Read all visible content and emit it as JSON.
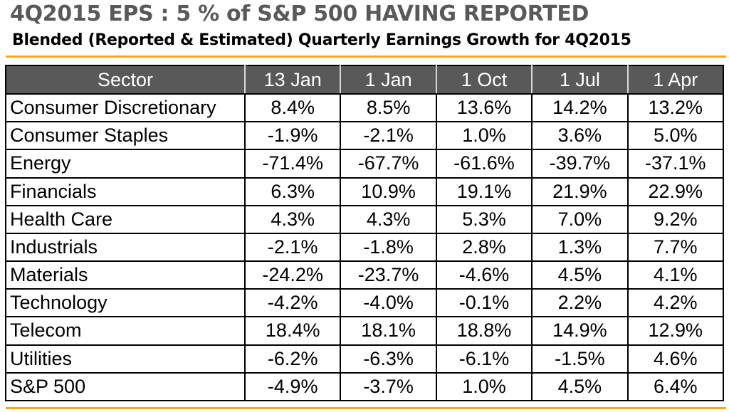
{
  "title": "4Q2015 EPS : 5 % of S&P 500 HAVING REPORTED",
  "subtitle": "Blended (Reported & Estimated) Quarterly Earnings Growth for 4Q2015",
  "colors": {
    "header_bg": "#595959",
    "accent_rule": "#f5a623"
  },
  "table": {
    "headers": [
      "Sector",
      "13 Jan",
      "1 Jan",
      "1 Oct",
      "1 Jul",
      "1 Apr"
    ],
    "rows": [
      [
        "Consumer Discretionary",
        "8.4%",
        "8.5%",
        "13.6%",
        "14.2%",
        "13.2%"
      ],
      [
        "Consumer Staples",
        "-1.9%",
        "-2.1%",
        "1.0%",
        "3.6%",
        "5.0%"
      ],
      [
        "Energy",
        "-71.4%",
        "-67.7%",
        "-61.6%",
        "-39.7%",
        "-37.1%"
      ],
      [
        "Financials",
        "6.3%",
        "10.9%",
        "19.1%",
        "21.9%",
        "22.9%"
      ],
      [
        "Health Care",
        "4.3%",
        "4.3%",
        "5.3%",
        "7.0%",
        "9.2%"
      ],
      [
        "Industrials",
        "-2.1%",
        "-1.8%",
        "2.8%",
        "1.3%",
        "7.7%"
      ],
      [
        "Materials",
        "-24.2%",
        "-23.7%",
        "-4.6%",
        "4.5%",
        "4.1%"
      ],
      [
        "Technology",
        "-4.2%",
        "-4.0%",
        "-0.1%",
        "2.2%",
        "4.2%"
      ],
      [
        "Telecom",
        "18.4%",
        "18.1%",
        "18.8%",
        "14.9%",
        "12.9%"
      ],
      [
        "Utilities",
        "-6.2%",
        "-6.3%",
        "-6.1%",
        "-1.5%",
        "4.6%"
      ],
      [
        "S&P 500",
        "-4.9%",
        "-3.7%",
        "1.0%",
        "4.5%",
        "6.4%"
      ]
    ]
  }
}
